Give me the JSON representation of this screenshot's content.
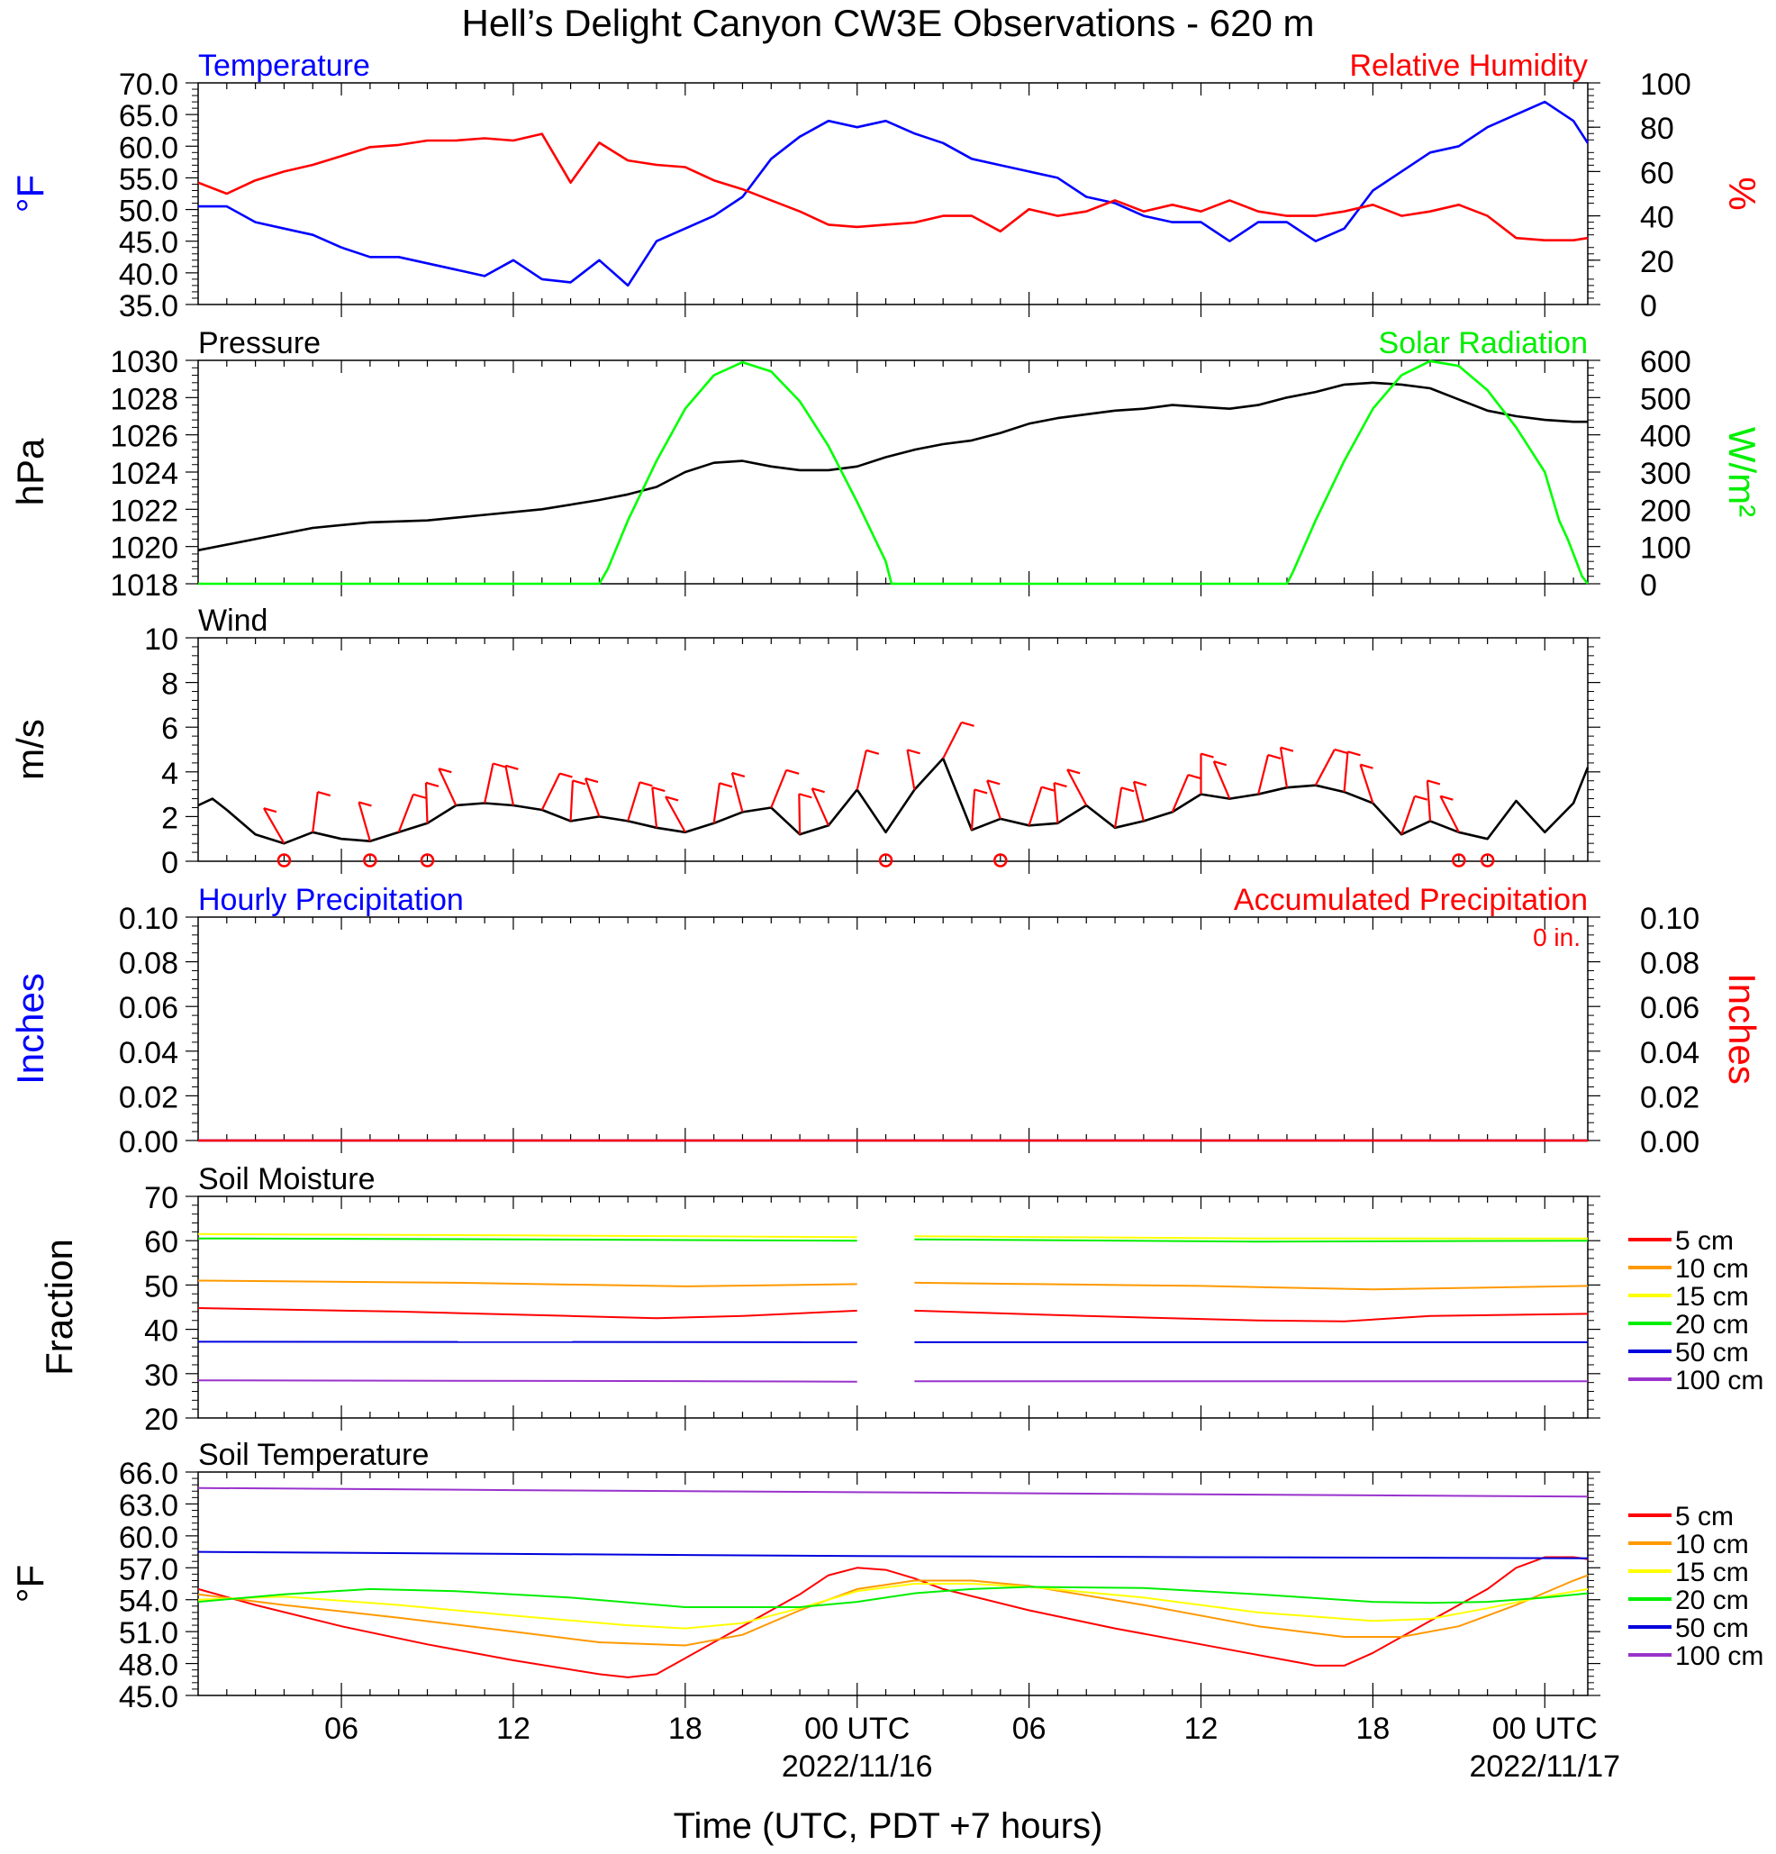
{
  "title": "Hell’s Delight Canyon CW3E Observations - 620 m",
  "x_axis": {
    "label": "Time (UTC, PDT +7 hours)",
    "ticks": [
      {
        "hours": 6,
        "label": "06"
      },
      {
        "hours": 12,
        "label": "12"
      },
      {
        "hours": 18,
        "label": "18"
      },
      {
        "hours": 24,
        "label": "00 UTC",
        "date": "2022/11/16"
      },
      {
        "hours": 30,
        "label": "06"
      },
      {
        "hours": 36,
        "label": "12"
      },
      {
        "hours": 42,
        "label": "18"
      },
      {
        "hours": 48,
        "label": "00 UTC",
        "date": "2022/11/17"
      }
    ],
    "range_hours": [
      1,
      49.5
    ]
  },
  "colors": {
    "temperature": "#0000ff",
    "humidity": "#ff0000",
    "pressure": "#000000",
    "solar": "#00ff00",
    "wind": "#000000",
    "wind_barb": "#ff0000",
    "hourly_precip": "#0000ff",
    "accum_precip": "#ff0000"
  },
  "depth_colors": {
    "5 cm": "#ff0000",
    "10 cm": "#ff9900",
    "15 cm": "#ffff00",
    "20 cm": "#00ee00",
    "50 cm": "#0000dd",
    "100 cm": "#9933cc"
  },
  "chart_data": [
    {
      "type": "line",
      "panel": "temperature-humidity",
      "left_title": "Temperature",
      "right_title": "Relative Humidity",
      "ylabel_left": "°F",
      "ylabel_right": "%",
      "ylim_left": [
        35,
        70
      ],
      "ylim_right": [
        0,
        100
      ],
      "yticks_left": [
        "35.0",
        "40.0",
        "45.0",
        "50.0",
        "55.0",
        "60.0",
        "65.0",
        "70.0"
      ],
      "yticks_right": [
        "0",
        "20",
        "40",
        "60",
        "80",
        "100"
      ],
      "series": [
        {
          "axis": "left",
          "color": "temperature",
          "x": [
            1,
            2,
            3,
            4,
            5,
            6,
            7,
            8,
            9,
            10,
            11,
            12,
            13,
            14,
            15,
            16,
            17,
            18,
            19,
            20,
            21,
            22,
            23,
            24,
            25,
            26,
            27,
            28,
            29,
            30,
            31,
            32,
            33,
            34,
            35,
            36,
            37,
            38,
            39,
            40,
            41,
            42,
            43,
            44,
            45,
            46,
            47,
            48,
            49,
            49.5
          ],
          "y": [
            50.5,
            50.5,
            48,
            47,
            46,
            44,
            42.5,
            42.5,
            41.5,
            40.5,
            39.5,
            42,
            39,
            38.5,
            42,
            38,
            45,
            47,
            49,
            52,
            58,
            61.5,
            64,
            63,
            64,
            62,
            60.5,
            58,
            57,
            56,
            55,
            52,
            51,
            49,
            48,
            48,
            45,
            48,
            48,
            45,
            47,
            53,
            56,
            59,
            60,
            63,
            65,
            67,
            64,
            60.5
          ]
        },
        {
          "axis": "right",
          "color": "humidity",
          "x": [
            1,
            2,
            3,
            4,
            5,
            6,
            7,
            8,
            9,
            10,
            11,
            12,
            13,
            14,
            15,
            16,
            17,
            18,
            19,
            20,
            21,
            22,
            23,
            24,
            25,
            26,
            27,
            28,
            29,
            30,
            31,
            32,
            33,
            34,
            35,
            36,
            37,
            38,
            39,
            40,
            41,
            42,
            43,
            44,
            45,
            46,
            47,
            48,
            49,
            49.5
          ],
          "y": [
            55,
            50,
            56,
            60,
            63,
            67,
            71,
            72,
            74,
            74,
            75,
            74,
            77,
            55,
            73,
            65,
            63,
            62,
            56,
            52,
            47,
            42,
            36,
            35,
            36,
            37,
            40,
            40,
            33,
            43,
            40,
            42,
            47,
            42,
            45,
            42,
            47,
            42,
            40,
            40,
            42,
            45,
            40,
            42,
            45,
            40,
            30,
            29,
            29,
            30
          ]
        }
      ]
    },
    {
      "type": "line",
      "panel": "pressure-solar",
      "left_title": "Pressure",
      "right_title": "Solar Radiation",
      "ylabel_left": "hPa",
      "ylabel_right": "W/m²",
      "ylim_left": [
        1018,
        1030
      ],
      "ylim_right": [
        0,
        600
      ],
      "yticks_left": [
        "1018",
        "1020",
        "1022",
        "1024",
        "1026",
        "1028",
        "1030"
      ],
      "yticks_right": [
        "0",
        "100",
        "200",
        "300",
        "400",
        "500",
        "600"
      ],
      "series": [
        {
          "axis": "left",
          "color": "pressure",
          "x": [
            1,
            3,
            5,
            7,
            9,
            11,
            13,
            15,
            16,
            17,
            18,
            19,
            20,
            21,
            22,
            23,
            24,
            25,
            26,
            27,
            28,
            29,
            30,
            31,
            32,
            33,
            34,
            35,
            36,
            37,
            38,
            39,
            40,
            41,
            42,
            43,
            44,
            45,
            46,
            47,
            48,
            49,
            49.5
          ],
          "y": [
            1019.8,
            1020.4,
            1021,
            1021.3,
            1021.4,
            1021.7,
            1022,
            1022.5,
            1022.8,
            1023.2,
            1024,
            1024.5,
            1024.6,
            1024.3,
            1024.1,
            1024.1,
            1024.3,
            1024.8,
            1025.2,
            1025.5,
            1025.7,
            1026.1,
            1026.6,
            1026.9,
            1027.1,
            1027.3,
            1027.4,
            1027.6,
            1027.5,
            1027.4,
            1027.6,
            1028,
            1028.3,
            1028.7,
            1028.8,
            1028.7,
            1028.5,
            1027.9,
            1027.3,
            1027,
            1026.8,
            1026.7,
            1026.7
          ]
        },
        {
          "axis": "right",
          "color": "solar",
          "x": [
            1,
            15,
            15.3,
            16,
            17,
            18,
            19,
            20,
            21,
            22,
            23,
            24,
            25,
            25.2,
            39,
            39.2,
            40,
            41,
            42,
            43,
            44,
            45,
            46,
            47,
            48,
            48.5,
            48.8,
            49,
            49.3,
            49.5
          ],
          "y": [
            0,
            0,
            40,
            170,
            330,
            470,
            560,
            595,
            570,
            490,
            370,
            220,
            60,
            0,
            0,
            30,
            170,
            330,
            470,
            560,
            598,
            585,
            520,
            420,
            300,
            170,
            120,
            80,
            20,
            0
          ]
        }
      ]
    },
    {
      "type": "line",
      "panel": "wind",
      "left_title": "Wind",
      "ylabel_left": "m/s",
      "ylim_left": [
        0,
        10
      ],
      "yticks_left": [
        "0",
        "2",
        "4",
        "6",
        "8",
        "10"
      ],
      "series": [
        {
          "axis": "left",
          "color": "wind",
          "x": [
            1,
            1.5,
            2,
            3,
            4,
            5,
            6,
            7,
            8,
            9,
            10,
            11,
            12,
            13,
            14,
            15,
            16,
            17,
            18,
            19,
            20,
            21,
            22,
            23,
            24,
            25,
            26,
            27,
            28,
            29,
            30,
            31,
            32,
            33,
            34,
            35,
            36,
            37,
            38,
            39,
            40,
            41,
            42,
            43,
            44,
            45,
            46,
            47,
            48,
            49,
            49.5
          ],
          "y": [
            2.5,
            2.8,
            2.3,
            1.2,
            0.8,
            1.3,
            1.0,
            0.9,
            1.3,
            1.7,
            2.5,
            2.6,
            2.5,
            2.3,
            1.8,
            2.0,
            1.8,
            1.5,
            1.3,
            1.7,
            2.2,
            2.4,
            1.2,
            1.6,
            3.2,
            1.3,
            3.2,
            4.6,
            1.4,
            1.9,
            1.6,
            1.7,
            2.5,
            1.5,
            1.8,
            2.2,
            3.0,
            2.8,
            3.0,
            3.3,
            3.4,
            3.1,
            2.6,
            1.2,
            1.8,
            1.3,
            1.0,
            2.7,
            1.3,
            2.6,
            4.2
          ]
        }
      ],
      "barbs_x": [
        4,
        5,
        7,
        8,
        9,
        10,
        11,
        12,
        13,
        14,
        15,
        16,
        17,
        18,
        19,
        20,
        21,
        22,
        23,
        24,
        26,
        27,
        28,
        29,
        30,
        31,
        32,
        33,
        34,
        35,
        36,
        37,
        38,
        39,
        40,
        41,
        42,
        43,
        44,
        45
      ],
      "calm_x": [
        4,
        7,
        9,
        25,
        29,
        45,
        46
      ]
    },
    {
      "type": "line",
      "panel": "precipitation",
      "left_title": "Hourly Precipitation",
      "right_title": "Accumulated Precipitation",
      "annotation": "0 in.",
      "ylabel_left": "Inches",
      "ylabel_right": "Inches",
      "ylim_left": [
        0,
        0.1
      ],
      "ylim_right": [
        0,
        0.1
      ],
      "yticks_left": [
        "0.00",
        "0.02",
        "0.04",
        "0.06",
        "0.08",
        "0.10"
      ],
      "yticks_right": [
        "0.00",
        "0.02",
        "0.04",
        "0.06",
        "0.08",
        "0.10"
      ],
      "series": [
        {
          "axis": "left",
          "color": "hourly_precip",
          "x": [
            1,
            49.5
          ],
          "y": [
            0,
            0
          ]
        },
        {
          "axis": "right",
          "color": "accum_precip",
          "x": [
            1,
            49.5
          ],
          "y": [
            0,
            0
          ]
        }
      ]
    },
    {
      "type": "line",
      "panel": "soil-moisture",
      "left_title": "Soil Moisture",
      "ylabel_left": "Fraction",
      "ylim_left": [
        20,
        70
      ],
      "yticks_left": [
        "20",
        "30",
        "40",
        "50",
        "60",
        "70"
      ],
      "legend": [
        "5 cm",
        "10 cm",
        "15 cm",
        "20 cm",
        "50 cm",
        "100 cm"
      ],
      "gap_hours": [
        24,
        26
      ],
      "series": [
        {
          "name": "5 cm",
          "x": [
            1,
            8,
            14,
            17,
            20,
            24,
            26,
            32,
            38,
            41,
            44,
            49.5
          ],
          "y": [
            44.8,
            44,
            43,
            42.5,
            43,
            44.2,
            44.2,
            43,
            42,
            41.8,
            43,
            43.5
          ]
        },
        {
          "name": "10 cm",
          "x": [
            1,
            10,
            18,
            24,
            26,
            36,
            42,
            49.5
          ],
          "y": [
            51,
            50.5,
            49.7,
            50.2,
            50.5,
            49.8,
            49,
            49.8
          ]
        },
        {
          "name": "15 cm",
          "x": [
            1,
            12,
            24,
            26,
            38,
            49.5
          ],
          "y": [
            61.5,
            61.2,
            60.8,
            61,
            60.5,
            60.5
          ]
        },
        {
          "name": "20 cm",
          "x": [
            1,
            12,
            24,
            26,
            38,
            49.5
          ],
          "y": [
            60.5,
            60.3,
            60,
            60.3,
            59.8,
            60
          ]
        },
        {
          "name": "50 cm",
          "x": [
            1,
            24,
            26,
            49.5
          ],
          "y": [
            37.2,
            37.1,
            37.1,
            37.1
          ]
        },
        {
          "name": "100 cm",
          "x": [
            1,
            19,
            24,
            26,
            49.5
          ],
          "y": [
            28.5,
            28.3,
            28.2,
            28.3,
            28.3
          ]
        }
      ]
    },
    {
      "type": "line",
      "panel": "soil-temperature",
      "left_title": "Soil Temperature",
      "ylabel_left": "°F",
      "ylim_left": [
        45,
        66
      ],
      "yticks_left": [
        "45.0",
        "48.0",
        "51.0",
        "54.0",
        "57.0",
        "60.0",
        "63.0",
        "66.0"
      ],
      "legend": [
        "5 cm",
        "10 cm",
        "15 cm",
        "20 cm",
        "50 cm",
        "100 cm"
      ],
      "series": [
        {
          "name": "5 cm",
          "x": [
            1,
            3,
            6,
            9,
            12,
            15,
            16,
            17,
            18,
            20,
            22,
            23,
            24,
            25,
            26,
            27,
            30,
            33,
            36,
            39,
            40,
            41,
            42,
            44,
            46,
            47,
            48,
            49,
            49.5
          ],
          "y": [
            55,
            53.5,
            51.5,
            49.8,
            48.3,
            47,
            46.7,
            47,
            48.5,
            51.5,
            54.5,
            56.3,
            57,
            56.8,
            56,
            55,
            53,
            51.3,
            49.8,
            48.3,
            47.8,
            47.8,
            49,
            52,
            55,
            57,
            58,
            58,
            57.8
          ]
        },
        {
          "name": "10 cm",
          "x": [
            1,
            4,
            8,
            12,
            15,
            18,
            20,
            22,
            24,
            26,
            28,
            30,
            34,
            38,
            41,
            43,
            45,
            47,
            49,
            49.5
          ],
          "y": [
            54.5,
            53.5,
            52.3,
            51,
            50,
            49.7,
            50.7,
            53,
            55,
            55.8,
            55.8,
            55.3,
            53.5,
            51.5,
            50.5,
            50.5,
            51.5,
            53.5,
            55.8,
            56.3
          ]
        },
        {
          "name": "15 cm",
          "x": [
            1,
            4,
            8,
            12,
            16,
            18,
            20,
            22,
            24,
            26,
            28,
            30,
            34,
            38,
            42,
            44,
            46,
            48,
            49.5
          ],
          "y": [
            54,
            54.3,
            53.5,
            52.5,
            51.6,
            51.3,
            51.8,
            53.2,
            54.8,
            55.5,
            55.5,
            55.2,
            54.2,
            52.8,
            52,
            52.2,
            53.2,
            54.3,
            55
          ]
        },
        {
          "name": "20 cm",
          "x": [
            1,
            4,
            7,
            10,
            14,
            18,
            22,
            24,
            26,
            28,
            30,
            34,
            38,
            42,
            44,
            46,
            48,
            49.5
          ],
          "y": [
            53.8,
            54.5,
            55,
            54.8,
            54.2,
            53.3,
            53.3,
            53.8,
            54.6,
            55,
            55.2,
            55.1,
            54.5,
            53.8,
            53.7,
            53.8,
            54.2,
            54.6
          ]
        },
        {
          "name": "50 cm",
          "x": [
            1,
            12,
            24,
            36,
            49.5
          ],
          "y": [
            58.5,
            58.3,
            58.1,
            58,
            57.9
          ]
        },
        {
          "name": "100 cm",
          "x": [
            1,
            12,
            24,
            36,
            49.5
          ],
          "y": [
            64.5,
            64.3,
            64.1,
            63.9,
            63.7
          ]
        }
      ]
    }
  ]
}
